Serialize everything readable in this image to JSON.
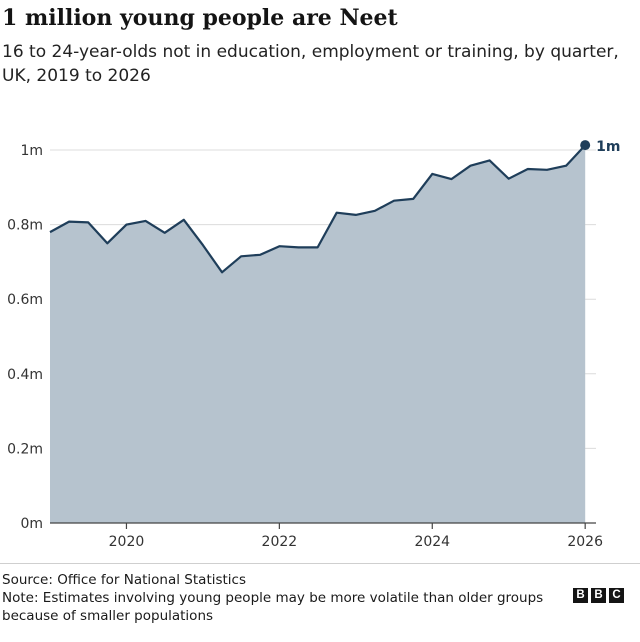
{
  "header": {
    "title": "1 million young people are Neet",
    "subtitle": "16 to 24-year-olds not in education, employment or training, by quarter, UK, 2019 to 2026"
  },
  "chart_data": {
    "type": "area",
    "x_unit": "year (quarterly)",
    "y_unit": "people",
    "x": [
      2019.0,
      2019.25,
      2019.5,
      2019.75,
      2020.0,
      2020.25,
      2020.5,
      2020.75,
      2021.0,
      2021.25,
      2021.5,
      2021.75,
      2022.0,
      2022.25,
      2022.5,
      2022.75,
      2023.0,
      2023.25,
      2023.5,
      2023.75,
      2024.0,
      2024.25,
      2024.5,
      2024.75,
      2025.0,
      2025.25,
      2025.5,
      2025.75,
      2026.0
    ],
    "values": [
      780000,
      808000,
      806000,
      750000,
      800000,
      810000,
      778000,
      813000,
      745000,
      672000,
      715000,
      719000,
      742000,
      739000,
      739000,
      832000,
      826000,
      837000,
      864000,
      869000,
      936000,
      922000,
      958000,
      972000,
      923000,
      949000,
      947000,
      958000,
      1013000
    ],
    "xlim": [
      2019,
      2026.05
    ],
    "ylim": [
      0,
      1000000
    ],
    "y_ticks": [
      {
        "value": 0,
        "label": "0m"
      },
      {
        "value": 200000,
        "label": "0.2m"
      },
      {
        "value": 400000,
        "label": "0.4m"
      },
      {
        "value": 600000,
        "label": "0.6m"
      },
      {
        "value": 800000,
        "label": "0.8m"
      },
      {
        "value": 1000000,
        "label": "1m"
      }
    ],
    "x_ticks": [
      {
        "value": 2020,
        "label": "2020"
      },
      {
        "value": 2022,
        "label": "2022"
      },
      {
        "value": 2024,
        "label": "2024"
      },
      {
        "value": 2026,
        "label": "2026"
      }
    ],
    "grid": true,
    "end_label": "1m",
    "colors": {
      "line": "#1f3e5a",
      "area": "#b6c3ce",
      "grid": "#dcdcdc",
      "axis": "#444444"
    }
  },
  "footer": {
    "source": "Source: Office for National Statistics",
    "note": "Note: Estimates involving young people may be more volatile than older groups because of smaller populations",
    "logo": {
      "letters": [
        "B",
        "B",
        "C"
      ]
    }
  }
}
